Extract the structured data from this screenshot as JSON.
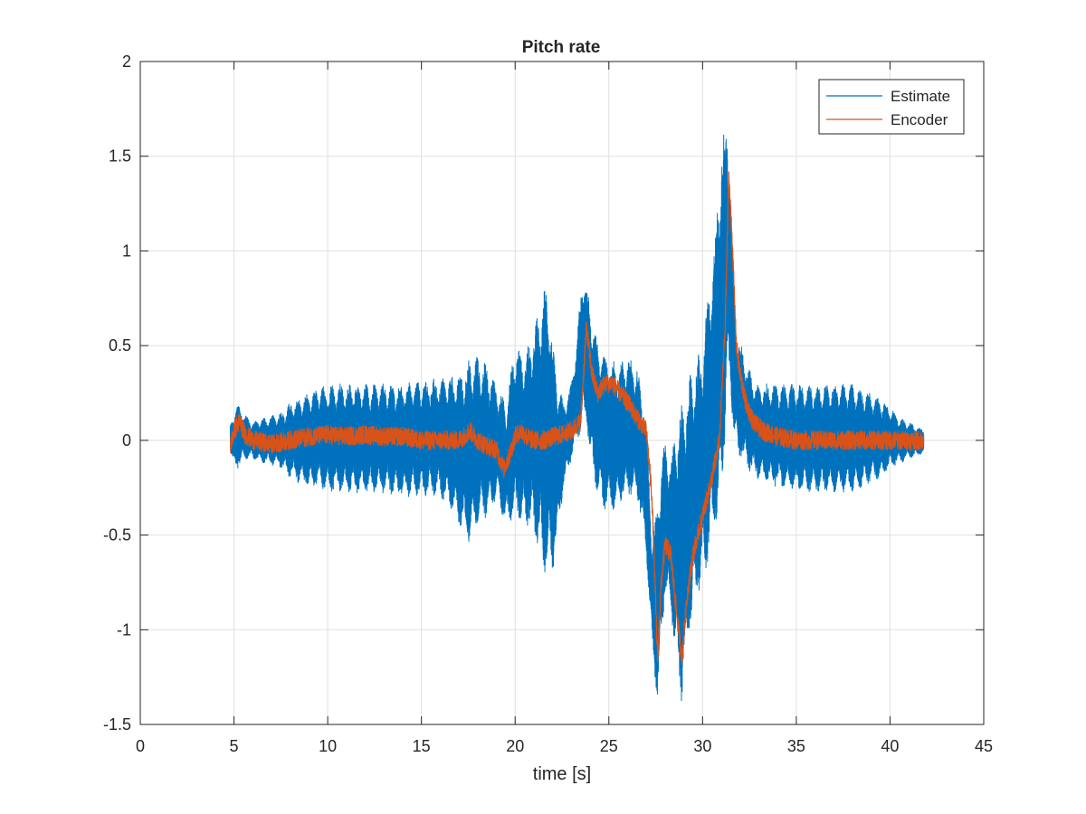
{
  "chart_data": {
    "type": "line",
    "title": "Pitch rate",
    "xlabel": "time [s]",
    "ylabel": "",
    "xlim": [
      0,
      45
    ],
    "ylim": [
      -1.5,
      2
    ],
    "grid": true,
    "legend_position": "top-right",
    "xticks": [
      0,
      5,
      10,
      15,
      20,
      25,
      30,
      35,
      40,
      45
    ],
    "xtick_labels": [
      "0",
      "5",
      "10",
      "15",
      "20",
      "25",
      "30",
      "35",
      "40",
      "45"
    ],
    "yticks": [
      -1.5,
      -1,
      -0.5,
      0,
      0.5,
      1,
      1.5,
      2
    ],
    "ytick_labels": [
      "-1.5",
      "-1",
      "-0.5",
      "0",
      "0.5",
      "1",
      "1.5",
      "2"
    ],
    "series": [
      {
        "name": "Estimate",
        "color": "#0072BD",
        "style": "dense oscillating band (upper/lower envelope)",
        "x": [
          4.8,
          5.0,
          5.2,
          5.5,
          6.0,
          6.5,
          7.0,
          7.5,
          8.0,
          8.5,
          9.0,
          9.5,
          10.0,
          10.5,
          11.0,
          12.0,
          13.0,
          14.0,
          15.0,
          16.0,
          16.5,
          17.0,
          17.5,
          18.0,
          18.5,
          19.0,
          19.5,
          20.0,
          20.5,
          21.0,
          21.3,
          21.5,
          21.8,
          22.0,
          22.3,
          22.6,
          23.0,
          23.3,
          23.6,
          23.8,
          24.0,
          24.3,
          24.6,
          25.0,
          25.5,
          26.0,
          26.5,
          27.0,
          27.3,
          27.6,
          27.8,
          28.0,
          28.3,
          28.6,
          28.9,
          29.2,
          29.5,
          30.0,
          30.3,
          30.6,
          30.9,
          31.1,
          31.3,
          31.5,
          31.7,
          31.9,
          32.1,
          32.4,
          32.8,
          33.3,
          34.0,
          35.0,
          36.0,
          37.0,
          38.0,
          38.5,
          39.0,
          39.5,
          40.0,
          40.5,
          41.0,
          41.5,
          41.8
        ],
        "upper": [
          0.08,
          0.15,
          0.2,
          0.15,
          0.1,
          0.12,
          0.13,
          0.15,
          0.2,
          0.23,
          0.25,
          0.28,
          0.3,
          0.3,
          0.3,
          0.3,
          0.3,
          0.3,
          0.32,
          0.33,
          0.35,
          0.35,
          0.43,
          0.45,
          0.4,
          0.3,
          0.2,
          0.52,
          0.45,
          0.6,
          0.7,
          0.8,
          0.85,
          0.5,
          0.3,
          0.2,
          0.3,
          0.55,
          0.9,
          0.85,
          0.7,
          0.55,
          0.5,
          0.45,
          0.4,
          0.45,
          0.4,
          0.1,
          -0.5,
          -0.3,
          -0.1,
          0.0,
          -0.1,
          0.1,
          0.2,
          0.3,
          0.4,
          0.5,
          0.8,
          1.0,
          1.5,
          1.6,
          1.8,
          1.3,
          0.8,
          0.55,
          0.5,
          0.4,
          0.3,
          0.3,
          0.3,
          0.3,
          0.3,
          0.3,
          0.3,
          0.28,
          0.25,
          0.22,
          0.18,
          0.12,
          0.1,
          0.07,
          0.06
        ],
        "lower": [
          -0.05,
          -0.15,
          -0.15,
          -0.1,
          -0.1,
          -0.12,
          -0.13,
          -0.15,
          -0.2,
          -0.23,
          -0.25,
          -0.25,
          -0.28,
          -0.28,
          -0.28,
          -0.28,
          -0.28,
          -0.3,
          -0.3,
          -0.3,
          -0.35,
          -0.45,
          -0.55,
          -0.45,
          -0.4,
          -0.32,
          -0.45,
          -0.4,
          -0.45,
          -0.5,
          -0.6,
          -0.7,
          -0.7,
          -0.7,
          -0.5,
          -0.25,
          -0.1,
          0.0,
          0.05,
          0.1,
          -0.1,
          -0.25,
          -0.35,
          -0.4,
          -0.35,
          -0.3,
          -0.3,
          -0.6,
          -1.1,
          -1.4,
          -1.1,
          -0.8,
          -0.9,
          -1.2,
          -1.4,
          -1.1,
          -0.9,
          -0.75,
          -0.65,
          -0.5,
          -0.4,
          -0.2,
          0.3,
          0.2,
          0.0,
          -0.1,
          -0.1,
          -0.15,
          -0.2,
          -0.22,
          -0.25,
          -0.28,
          -0.28,
          -0.28,
          -0.28,
          -0.25,
          -0.22,
          -0.2,
          -0.15,
          -0.12,
          -0.1,
          -0.08,
          -0.07
        ],
        "freq": 2.2
      },
      {
        "name": "Encoder",
        "color": "#D95319",
        "style": "noisy line",
        "x": [
          4.8,
          5.0,
          5.3,
          5.6,
          6.0,
          7.0,
          8.0,
          9.0,
          10.0,
          11.0,
          12.0,
          13.0,
          14.0,
          15.0,
          16.0,
          17.0,
          17.6,
          18.0,
          18.5,
          19.0,
          19.4,
          19.7,
          20.0,
          20.3,
          20.6,
          21.0,
          21.5,
          22.0,
          22.5,
          23.0,
          23.5,
          23.8,
          24.1,
          24.4,
          24.8,
          25.2,
          25.6,
          26.0,
          26.5,
          27.0,
          27.3,
          27.6,
          27.8,
          28.0,
          28.3,
          28.6,
          28.9,
          29.2,
          29.5,
          30.0,
          30.5,
          30.9,
          31.2,
          31.4,
          31.6,
          31.8,
          32.0,
          32.3,
          32.7,
          33.2,
          34.0,
          35.0,
          36.0,
          37.0,
          38.0,
          39.0,
          40.0,
          41.0,
          41.8
        ],
        "y": [
          -0.03,
          0.05,
          0.1,
          0.03,
          0.0,
          -0.02,
          0.0,
          0.02,
          0.03,
          0.02,
          0.03,
          0.02,
          0.02,
          0.0,
          0.0,
          0.0,
          0.05,
          0.0,
          -0.03,
          -0.05,
          -0.15,
          -0.08,
          0.02,
          0.05,
          0.02,
          0.0,
          0.0,
          0.02,
          0.03,
          0.05,
          0.1,
          0.6,
          0.35,
          0.25,
          0.3,
          0.3,
          0.25,
          0.2,
          0.12,
          0.05,
          -0.3,
          -1.15,
          -0.75,
          -0.55,
          -0.6,
          -0.9,
          -1.15,
          -0.8,
          -0.6,
          -0.4,
          -0.2,
          0.0,
          0.6,
          1.4,
          1.0,
          0.5,
          0.35,
          0.2,
          0.1,
          0.05,
          0.02,
          0.0,
          0.0,
          0.0,
          0.0,
          0.0,
          0.0,
          0.0,
          0.0
        ],
        "noise": 0.05
      }
    ]
  }
}
